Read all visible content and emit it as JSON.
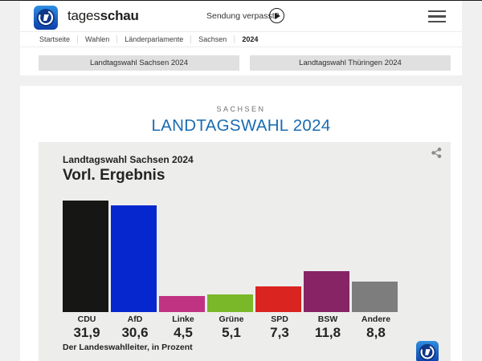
{
  "header": {
    "brand_light": "tages",
    "brand_bold": "schau",
    "watch_label": "Sendung verpasst?"
  },
  "breadcrumb": [
    "Startseite",
    "Wahlen",
    "Länderparlamente",
    "Sachsen",
    "2024"
  ],
  "quicklinks": [
    "Landtagswahl Sachsen 2024",
    "Landtagswahl Thüringen 2024"
  ],
  "page": {
    "kicker": "SACHSEN",
    "title": "LANDTAGSWAHL 2024"
  },
  "chart_data": {
    "type": "bar",
    "subtitle": "Landtagswahl Sachsen 2024",
    "title": "Vorl. Ergebnis",
    "categories": [
      "CDU",
      "AfD",
      "Linke",
      "Grüne",
      "SPD",
      "BSW",
      "Andere"
    ],
    "values": [
      31.9,
      30.6,
      4.5,
      5.1,
      7.3,
      11.8,
      8.8
    ],
    "value_labels": [
      "31,9",
      "30,6",
      "4,5",
      "5,1",
      "7,3",
      "11,8",
      "8,8"
    ],
    "bar_colors": [
      "#161614",
      "#0527cd",
      "#c03382",
      "#7ab829",
      "#da2420",
      "#872465",
      "#7d7d7d"
    ],
    "unit": "Prozent",
    "source": "Der Landeswahlleiter, in Prozent",
    "ylim": [
      0,
      33.5
    ],
    "grid": false,
    "legend": "none",
    "xlabel": "",
    "ylabel": ""
  },
  "colors": {
    "title_blue": "#1a6cb2",
    "logo_blue_top": "#2f8fe0",
    "logo_blue_bottom": "#0b3ea8",
    "card_bg": "#ededec"
  }
}
